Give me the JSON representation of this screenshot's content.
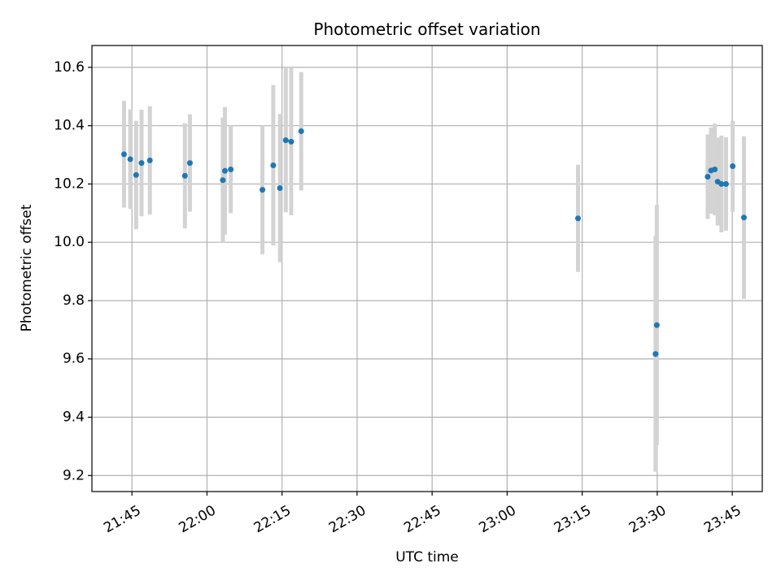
{
  "chart_data": {
    "type": "scatter",
    "title": "Photometric offset variation",
    "xlabel": "UTC time",
    "ylabel": "Photometric offset",
    "grid": true,
    "legend": "none",
    "xlim": [
      "21:37",
      "23:51"
    ],
    "ylim": [
      9.145,
      10.675
    ],
    "x_ticks": [
      "21:45",
      "22:00",
      "22:15",
      "22:30",
      "22:45",
      "23:00",
      "23:15",
      "23:30",
      "23:45"
    ],
    "y_ticks": [
      "9.2",
      "9.4",
      "9.6",
      "9.8",
      "10.0",
      "10.2",
      "10.4",
      "10.6"
    ],
    "colors": {
      "point": "#1f77b4",
      "errorbar": "#d3d3d3",
      "grid": "#b0b0b0"
    },
    "series": [
      {
        "points": [
          {
            "x": "21:43:25",
            "y": 10.302,
            "yerr": 0.183
          },
          {
            "x": "21:44:40",
            "y": 10.285,
            "yerr": 0.171
          },
          {
            "x": "21:45:50",
            "y": 10.231,
            "yerr": 0.186
          },
          {
            "x": "21:46:55",
            "y": 10.272,
            "yerr": 0.183
          },
          {
            "x": "21:48:35",
            "y": 10.281,
            "yerr": 0.186
          },
          {
            "x": "21:55:35",
            "y": 10.228,
            "yerr": 0.18
          },
          {
            "x": "21:56:35",
            "y": 10.272,
            "yerr": 0.167
          },
          {
            "x": "22:03:10",
            "y": 10.213,
            "yerr": 0.215
          },
          {
            "x": "22:03:35",
            "y": 10.245,
            "yerr": 0.219
          },
          {
            "x": "22:04:45",
            "y": 10.25,
            "yerr": 0.15
          },
          {
            "x": "22:11:05",
            "y": 10.18,
            "yerr": 0.221
          },
          {
            "x": "22:13:15",
            "y": 10.264,
            "yerr": 0.275
          },
          {
            "x": "22:14:35",
            "y": 10.186,
            "yerr": 0.254
          },
          {
            "x": "22:15:45",
            "y": 10.35,
            "yerr": 0.247
          },
          {
            "x": "22:16:50",
            "y": 10.345,
            "yerr": 0.252
          },
          {
            "x": "22:18:50",
            "y": 10.381,
            "yerr": 0.203
          },
          {
            "x": "23:14:10",
            "y": 10.082,
            "yerr": 0.184
          },
          {
            "x": "23:29:40",
            "y": 9.617,
            "yerr": 0.404
          },
          {
            "x": "23:29:55",
            "y": 9.716,
            "yerr": 0.412
          },
          {
            "x": "23:40:05",
            "y": 10.225,
            "yerr": 0.145
          },
          {
            "x": "23:40:45",
            "y": 10.246,
            "yerr": 0.148
          },
          {
            "x": "23:41:30",
            "y": 10.25,
            "yerr": 0.157
          },
          {
            "x": "23:42:05",
            "y": 10.208,
            "yerr": 0.151
          },
          {
            "x": "23:42:50",
            "y": 10.2,
            "yerr": 0.166
          },
          {
            "x": "23:43:45",
            "y": 10.2,
            "yerr": 0.16
          },
          {
            "x": "23:45:05",
            "y": 10.261,
            "yerr": 0.156
          },
          {
            "x": "23:47:20",
            "y": 10.085,
            "yerr": 0.279
          }
        ]
      }
    ]
  }
}
